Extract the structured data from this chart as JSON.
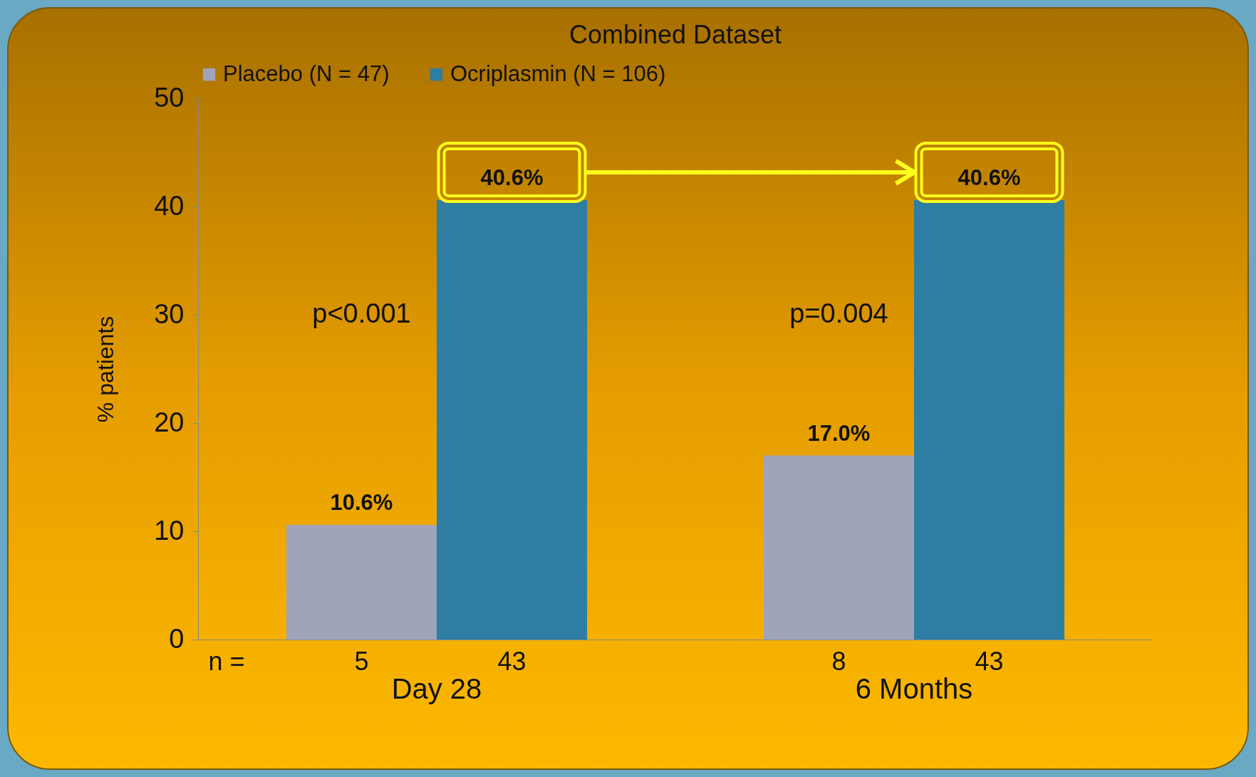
{
  "chart_data": {
    "type": "bar",
    "title": "Combined Dataset",
    "ylabel": "% patients",
    "categories": [
      "Day 28",
      "6 Months"
    ],
    "series": [
      {
        "name": "Placebo (N = 47)",
        "color": "#a0a4b8",
        "values": [
          10.6,
          17.0
        ],
        "value_labels": [
          "10.6%",
          "17.0%"
        ]
      },
      {
        "name": "Ocriplasmin (N = 106)",
        "color": "#2e7ea3",
        "values": [
          40.6,
          40.6
        ],
        "value_labels": [
          "40.6%",
          "40.6%"
        ]
      }
    ],
    "ylim": [
      0,
      50
    ],
    "yticks": [
      0,
      10,
      20,
      30,
      40,
      50
    ],
    "grid": false,
    "legend": "top",
    "annotations": [
      "n =",
      "5",
      "43",
      "8",
      "43",
      {
        "text": "p<0.001",
        "x": "Day 28",
        "y": 30
      },
      {
        "text": "p=0.004",
        "x": "6 Months",
        "y": 30
      }
    ]
  }
}
